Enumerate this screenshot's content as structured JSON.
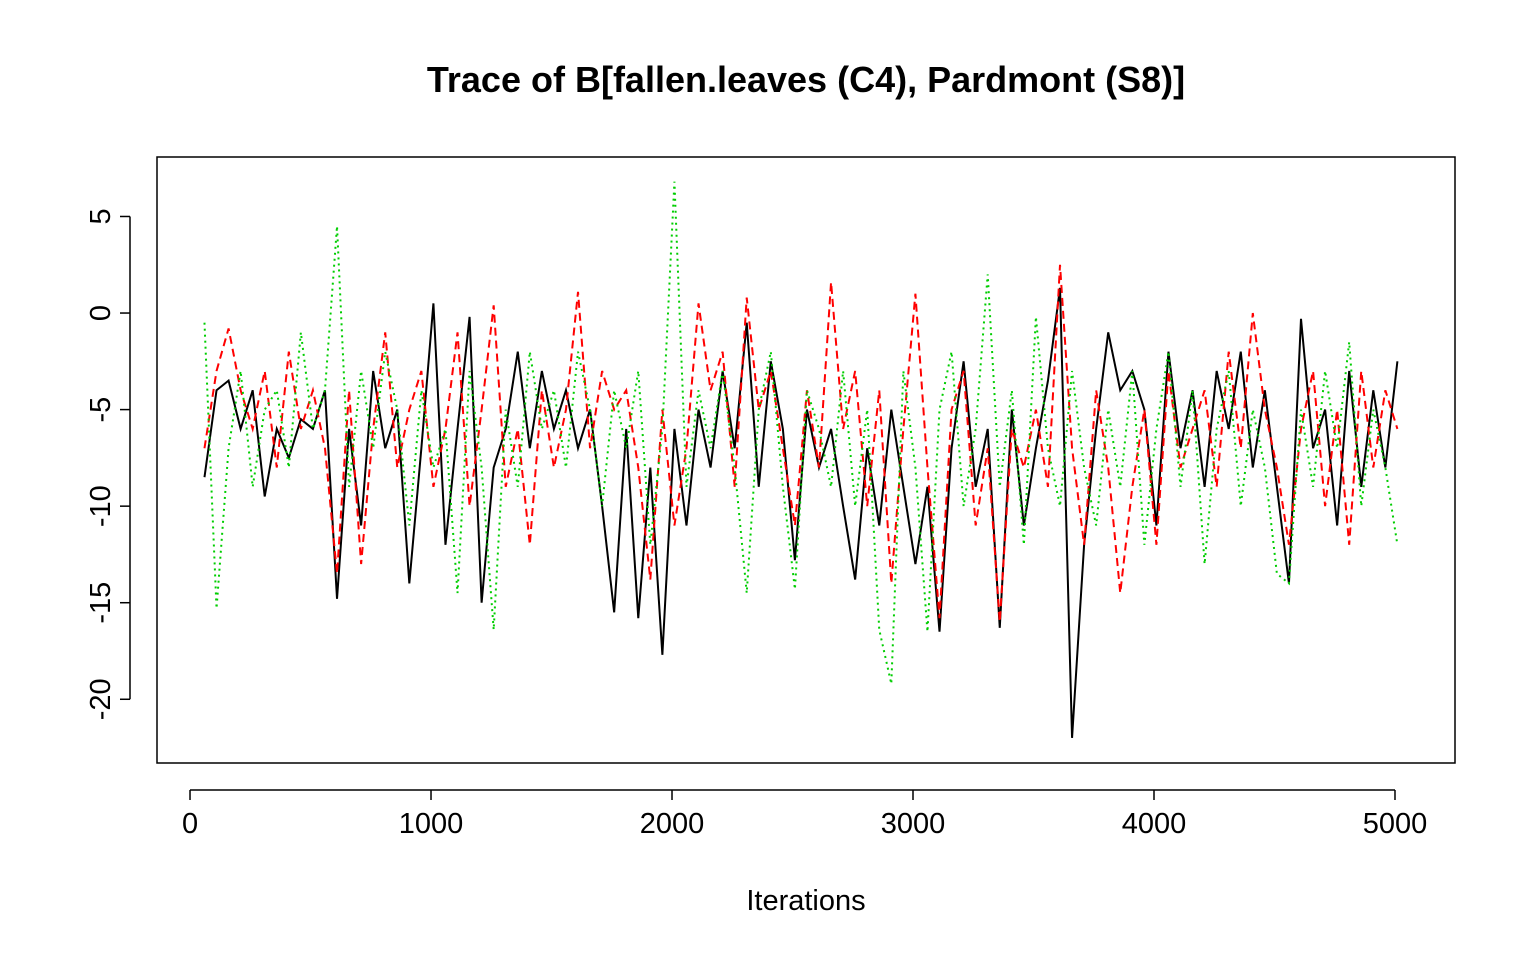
{
  "chart_data": {
    "type": "line",
    "title": "Trace of B[fallen.leaves (C4), Pardmont (S8)]",
    "x_label": "Iterations",
    "x": [
      60,
      110,
      160,
      210,
      260,
      310,
      360,
      410,
      460,
      510,
      560,
      610,
      660,
      710,
      760,
      810,
      860,
      910,
      960,
      1010,
      1060,
      1110,
      1160,
      1210,
      1260,
      1310,
      1360,
      1410,
      1460,
      1510,
      1560,
      1610,
      1660,
      1710,
      1760,
      1810,
      1860,
      1910,
      1960,
      2010,
      2060,
      2110,
      2160,
      2210,
      2260,
      2310,
      2360,
      2410,
      2460,
      2510,
      2560,
      2610,
      2660,
      2710,
      2760,
      2810,
      2860,
      2910,
      2960,
      3010,
      3060,
      3110,
      3160,
      3210,
      3260,
      3310,
      3360,
      3410,
      3460,
      3510,
      3560,
      3610,
      3660,
      3710,
      3760,
      3810,
      3860,
      3910,
      3960,
      4010,
      4060,
      4110,
      4160,
      4210,
      4260,
      4310,
      4360,
      4410,
      4460,
      4510,
      4560,
      4610,
      4660,
      4710,
      4760,
      4810,
      4860,
      4910,
      4960,
      5010
    ],
    "series": [
      {
        "color": "#000000",
        "dash": "solid",
        "values": [
          -8.5,
          -4,
          -3.5,
          -6,
          -4,
          -9.5,
          -6,
          -7.5,
          -5.5,
          -6,
          -4,
          -14.8,
          -6,
          -11,
          -3,
          -7,
          -5,
          -14,
          -7,
          0.5,
          -12,
          -6,
          -0.2,
          -15,
          -8,
          -6,
          -2,
          -7,
          -3,
          -6,
          -4,
          -7,
          -5,
          -10,
          -15.5,
          -6,
          -15.8,
          -8,
          -17.7,
          -6,
          -11,
          -5,
          -8,
          -3,
          -7,
          -0.5,
          -9,
          -2.5,
          -6,
          -12.8,
          -5,
          -8,
          -6,
          -10,
          -13.8,
          -7,
          -11,
          -5,
          -9,
          -13,
          -9,
          -16.5,
          -7,
          -2.5,
          -9,
          -6,
          -16.3,
          -5,
          -11,
          -7,
          -3.5,
          1.3,
          -22,
          -12,
          -6,
          -1,
          -4,
          -3,
          -5,
          -11,
          -2,
          -7,
          -4,
          -9,
          -3,
          -6,
          -2,
          -8,
          -4,
          -9,
          -14,
          -0.3,
          -7,
          -5,
          -11,
          -3,
          -9,
          -4,
          -8,
          -2.5
        ]
      },
      {
        "color": "#ff0000",
        "dash": "dashed",
        "values": [
          -7,
          -3,
          -0.8,
          -4,
          -6,
          -3,
          -8,
          -2,
          -6,
          -4,
          -7,
          -13.5,
          -4,
          -13,
          -6,
          -1,
          -8,
          -5,
          -3,
          -9,
          -6,
          -1,
          -10,
          -5,
          0.4,
          -9,
          -6,
          -12,
          -4,
          -8,
          -5,
          1.1,
          -7,
          -3,
          -5,
          -4,
          -8,
          -13.8,
          -5,
          -11,
          -7,
          0.5,
          -4,
          -2,
          -9,
          0.8,
          -5,
          -3,
          -7,
          -11,
          -4,
          -8,
          1.6,
          -6,
          -3,
          -10,
          -4,
          -14,
          -6,
          1,
          -8,
          -15.8,
          -5,
          -3,
          -11,
          -7,
          -16,
          -6,
          -8,
          -5,
          -9,
          2.5,
          -7,
          -12,
          -4,
          -8,
          -14.5,
          -9,
          -5,
          -12,
          -3,
          -8,
          -6,
          -4,
          -9,
          -2,
          -7,
          0,
          -5,
          -8,
          -12,
          -6,
          -3,
          -10,
          -5,
          -12,
          -3,
          -8,
          -4,
          -6
        ]
      },
      {
        "color": "#00cd00",
        "dash": "dotted",
        "values": [
          -0.5,
          -15.3,
          -7,
          -3,
          -9,
          -5,
          -4,
          -8,
          -1,
          -6,
          -4,
          4.5,
          -9,
          -3,
          -7,
          -2,
          -5,
          -11,
          -4,
          -8,
          -6,
          -14.5,
          -3,
          -8,
          -16.4,
          -5,
          -9,
          -2,
          -6,
          -4,
          -8,
          -2,
          -5,
          -10,
          -4,
          -7,
          -3,
          -12,
          -6,
          6.8,
          -9,
          -4,
          -7,
          -3,
          -8,
          -14.5,
          -5,
          -2,
          -9,
          -14.3,
          -4,
          -6,
          -9,
          -3,
          -10,
          -5,
          -16.4,
          -19.2,
          -3,
          -8,
          -16.5,
          -5,
          -2,
          -10,
          -6,
          2,
          -9,
          -4,
          -12,
          -0.2,
          -7,
          -10,
          -3,
          -8,
          -11,
          -5,
          -9,
          -3,
          -12,
          -6,
          -2,
          -9,
          -4,
          -13,
          -6,
          -3,
          -10,
          -5,
          -8,
          -13.5,
          -14,
          -5,
          -9,
          -3,
          -7,
          -1.5,
          -10,
          -5,
          -8,
          -12
        ]
      }
    ],
    "xlim": [
      -137,
      5249
    ],
    "ylim": [
      -23.3,
      8.08
    ],
    "xticks": [
      0,
      1000,
      2000,
      3000,
      4000,
      5000
    ],
    "yticks": [
      -20,
      -15,
      -10,
      -5,
      0,
      5
    ]
  }
}
